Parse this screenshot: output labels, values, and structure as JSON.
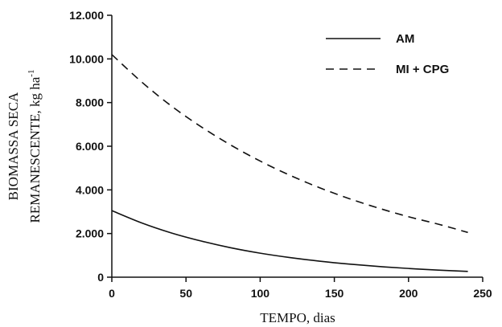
{
  "chart_data": {
    "type": "line",
    "title": "",
    "xlabel": "TEMPO, dias",
    "ylabel_line1": "BIOMASSA SECA",
    "ylabel_line2": "REMANESCENTE,  kg ha",
    "ylabel_superscript": "-1",
    "xlim": [
      0,
      250
    ],
    "ylim": [
      0,
      12000
    ],
    "x_ticks": [
      0,
      50,
      100,
      150,
      200,
      250
    ],
    "x_tick_labels": [
      "0",
      "50",
      "100",
      "150",
      "200",
      "250"
    ],
    "y_ticks": [
      0,
      2000,
      4000,
      6000,
      8000,
      10000,
      12000
    ],
    "y_tick_labels": [
      "0",
      "2.000",
      "4.000",
      "6.000",
      "8.000",
      "10.000",
      "12.000"
    ],
    "grid": false,
    "legend_position": "top-right",
    "series": [
      {
        "name": "AM",
        "style": "solid",
        "color": "#111111",
        "x": [
          0,
          20,
          40,
          60,
          80,
          100,
          120,
          140,
          160,
          180,
          200,
          220,
          240
        ],
        "y": [
          3050,
          2490,
          2030,
          1660,
          1350,
          1100,
          900,
          735,
          600,
          490,
          400,
          325,
          265
        ]
      },
      {
        "name": "MI + CPG",
        "style": "dashed",
        "color": "#111111",
        "x": [
          0,
          20,
          40,
          60,
          80,
          100,
          120,
          140,
          160,
          180,
          200,
          220,
          240
        ],
        "y": [
          10200,
          8950,
          7850,
          6900,
          6060,
          5320,
          4670,
          4100,
          3600,
          3160,
          2770,
          2430,
          2050
        ]
      }
    ]
  }
}
